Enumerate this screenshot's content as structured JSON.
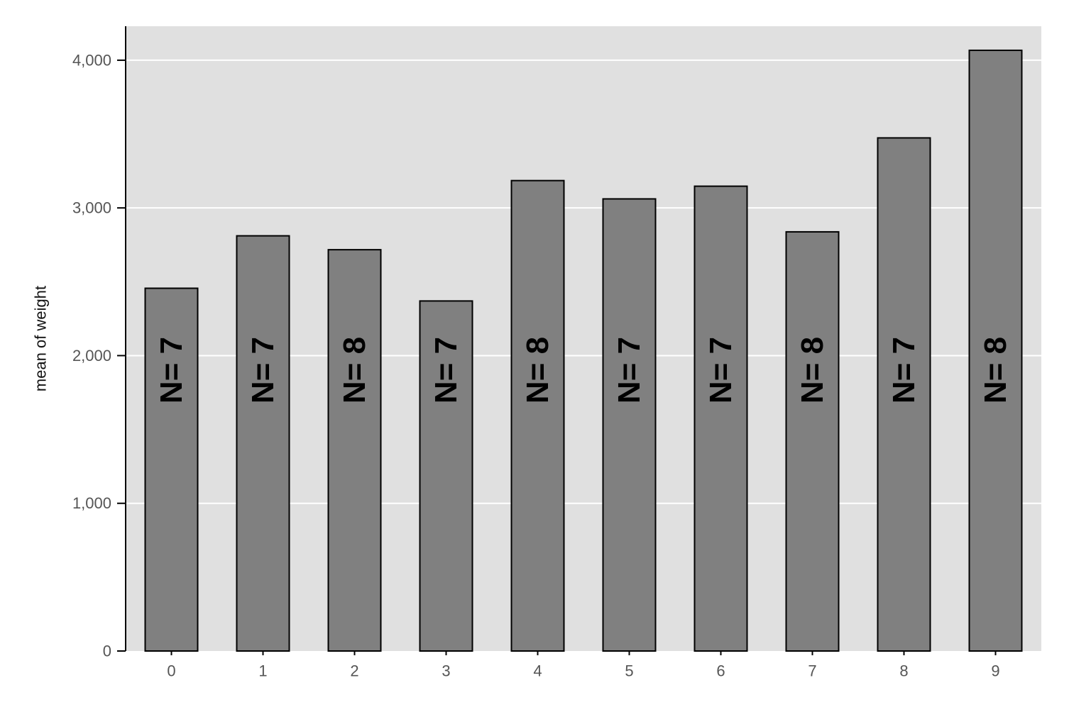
{
  "chart_data": {
    "type": "bar",
    "categories": [
      "0",
      "1",
      "2",
      "3",
      "4",
      "5",
      "6",
      "7",
      "8",
      "9"
    ],
    "values": [
      2456,
      2811,
      2717,
      2370,
      3185,
      3061,
      3147,
      2838,
      3474,
      4067
    ],
    "bar_labels": [
      "N= 7",
      "N= 7",
      "N= 8",
      "N= 7",
      "N= 8",
      "N= 7",
      "N= 7",
      "N= 8",
      "N= 7",
      "N= 8"
    ],
    "ylabel": "mean of weight",
    "ylim": [
      0,
      4230
    ],
    "yticks": [
      0,
      1000,
      2000,
      3000,
      4000
    ],
    "ytick_labels": [
      "0",
      "1,000",
      "2,000",
      "3,000",
      "4,000"
    ],
    "grid": true,
    "colors": {
      "plot_background": "#e0e0e0",
      "bar_fill": "#808080",
      "bar_stroke": "#000000",
      "gridline": "#ffffff"
    }
  }
}
